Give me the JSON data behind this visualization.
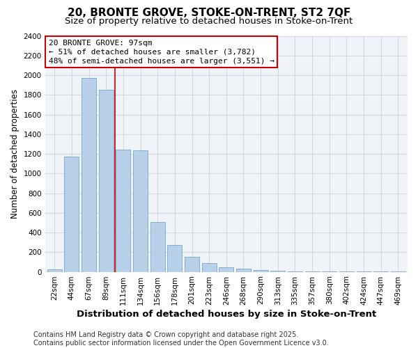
{
  "title": "20, BRONTE GROVE, STOKE-ON-TRENT, ST2 7QF",
  "subtitle": "Size of property relative to detached houses in Stoke-on-Trent",
  "xlabel": "Distribution of detached houses by size in Stoke-on-Trent",
  "ylabel": "Number of detached properties",
  "categories": [
    "22sqm",
    "44sqm",
    "67sqm",
    "89sqm",
    "111sqm",
    "134sqm",
    "156sqm",
    "178sqm",
    "201sqm",
    "223sqm",
    "246sqm",
    "268sqm",
    "290sqm",
    "313sqm",
    "335sqm",
    "357sqm",
    "380sqm",
    "402sqm",
    "424sqm",
    "447sqm",
    "469sqm"
  ],
  "values": [
    25,
    1175,
    1975,
    1850,
    1240,
    1235,
    510,
    270,
    150,
    90,
    50,
    35,
    15,
    10,
    5,
    5,
    3,
    2,
    2,
    2,
    2
  ],
  "bar_color": "#b8d0e8",
  "bar_edge_color": "#6699cc",
  "red_line_x": 3.5,
  "annotation_title": "20 BRONTE GROVE: 97sqm",
  "annotation_line1": "← 51% of detached houses are smaller (3,782)",
  "annotation_line2": "48% of semi-detached houses are larger (3,551) →",
  "annotation_box_facecolor": "#ffffff",
  "annotation_box_edgecolor": "#cc0000",
  "red_line_color": "#cc0000",
  "ylim": [
    0,
    2400
  ],
  "yticks": [
    0,
    200,
    400,
    600,
    800,
    1000,
    1200,
    1400,
    1600,
    1800,
    2000,
    2200,
    2400
  ],
  "plot_bg_color": "#f0f4f8",
  "fig_bg_color": "#ffffff",
  "grid_color": "#d0d8e4",
  "footer_line1": "Contains HM Land Registry data © Crown copyright and database right 2025.",
  "footer_line2": "Contains public sector information licensed under the Open Government Licence v3.0.",
  "title_fontsize": 11,
  "subtitle_fontsize": 9.5,
  "xlabel_fontsize": 9.5,
  "ylabel_fontsize": 8.5,
  "tick_fontsize": 7.5,
  "annotation_fontsize": 8,
  "footer_fontsize": 7
}
